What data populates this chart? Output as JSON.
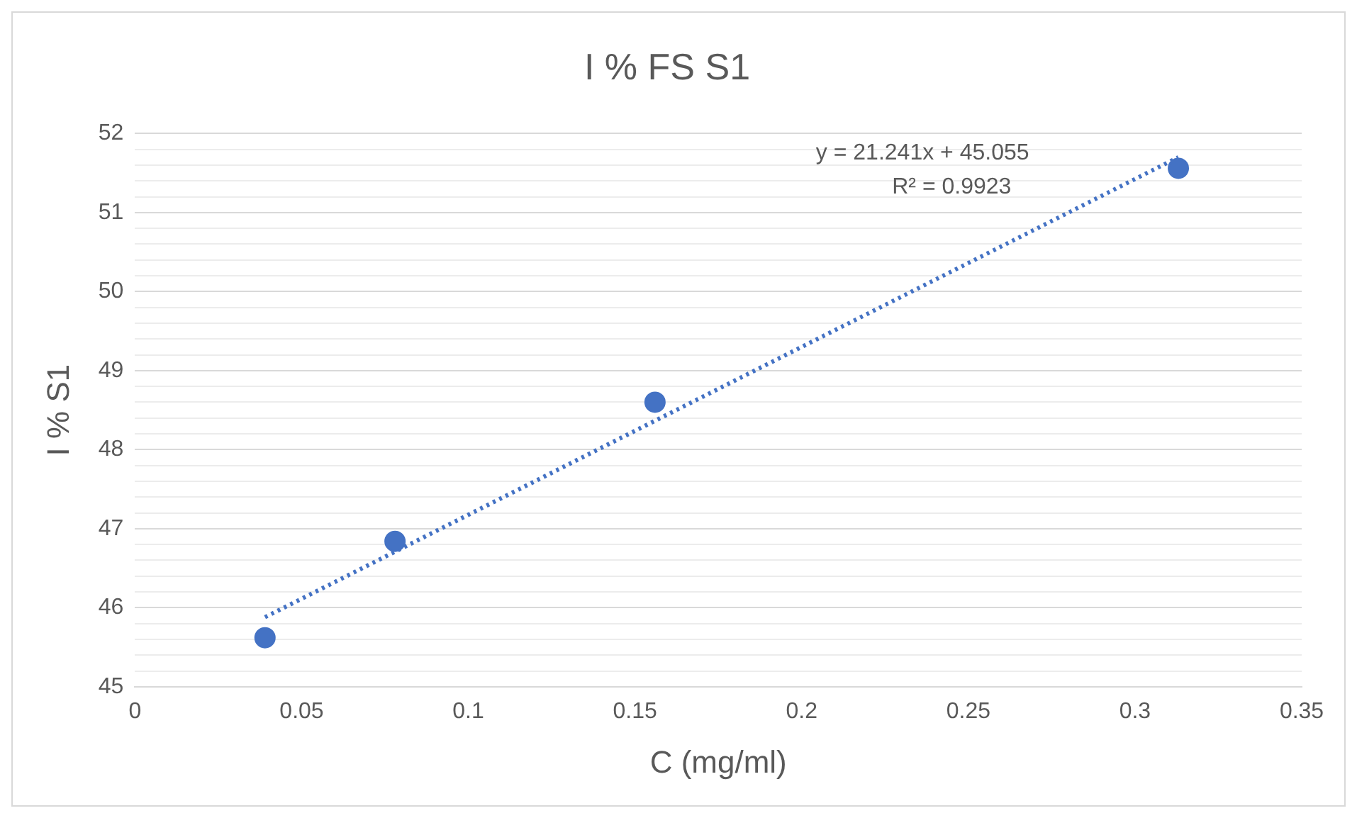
{
  "chart_data": {
    "type": "scatter",
    "title": "I % FS S1",
    "xlabel": "C (mg/ml)",
    "ylabel": "I % S1",
    "series": [
      {
        "type": "scatter",
        "color": "#4472c4",
        "x": [
          0.039,
          0.078,
          0.156,
          0.313
        ],
        "values": [
          45.62,
          46.84,
          48.6,
          51.56
        ],
        "marker": "circle"
      },
      {
        "type": "line",
        "color": "#4472c4",
        "x": [
          0.039,
          0.313
        ],
        "values": [
          45.88,
          51.7
        ],
        "marker": "none",
        "line_style": "dotted"
      }
    ],
    "xlim": [
      0,
      0.35
    ],
    "xticks": [
      0,
      0.05,
      0.1,
      0.15,
      0.2,
      0.25,
      0.3,
      0.35
    ],
    "ylim": [
      45,
      52
    ],
    "yticks": [
      45,
      {
        "value": 45.2,
        "label": null
      },
      {
        "value": 45.4,
        "label": null
      },
      {
        "value": 45.6,
        "label": null
      },
      {
        "value": 45.8,
        "label": null
      },
      46,
      {
        "value": 46.2,
        "label": null
      },
      {
        "value": 46.4,
        "label": null
      },
      {
        "value": 46.6,
        "label": null
      },
      {
        "value": 46.8,
        "label": null
      },
      47,
      {
        "value": 47.2,
        "label": null
      },
      {
        "value": 47.4,
        "label": null
      },
      {
        "value": 47.6,
        "label": null
      },
      {
        "value": 47.8,
        "label": null
      },
      48,
      {
        "value": 48.2,
        "label": null
      },
      {
        "value": 48.4,
        "label": null
      },
      {
        "value": 48.6,
        "label": null
      },
      {
        "value": 48.8,
        "label": null
      },
      49,
      {
        "value": 49.2,
        "label": null
      },
      {
        "value": 49.4,
        "label": null
      },
      {
        "value": 49.6,
        "label": null
      },
      {
        "value": 49.8,
        "label": null
      },
      50,
      {
        "value": 50.2,
        "label": null
      },
      {
        "value": 50.4,
        "label": null
      },
      {
        "value": 50.6,
        "label": null
      },
      {
        "value": 50.8,
        "label": null
      },
      51,
      {
        "value": 51.2,
        "label": null
      },
      {
        "value": 51.4,
        "label": null
      },
      {
        "value": 51.6,
        "label": null
      },
      {
        "value": 51.8,
        "label": null
      },
      52
    ],
    "grid": "y",
    "legend": false,
    "annotations": [
      "y = 21.241x + 45.055",
      "R² = 0.9923"
    ]
  }
}
